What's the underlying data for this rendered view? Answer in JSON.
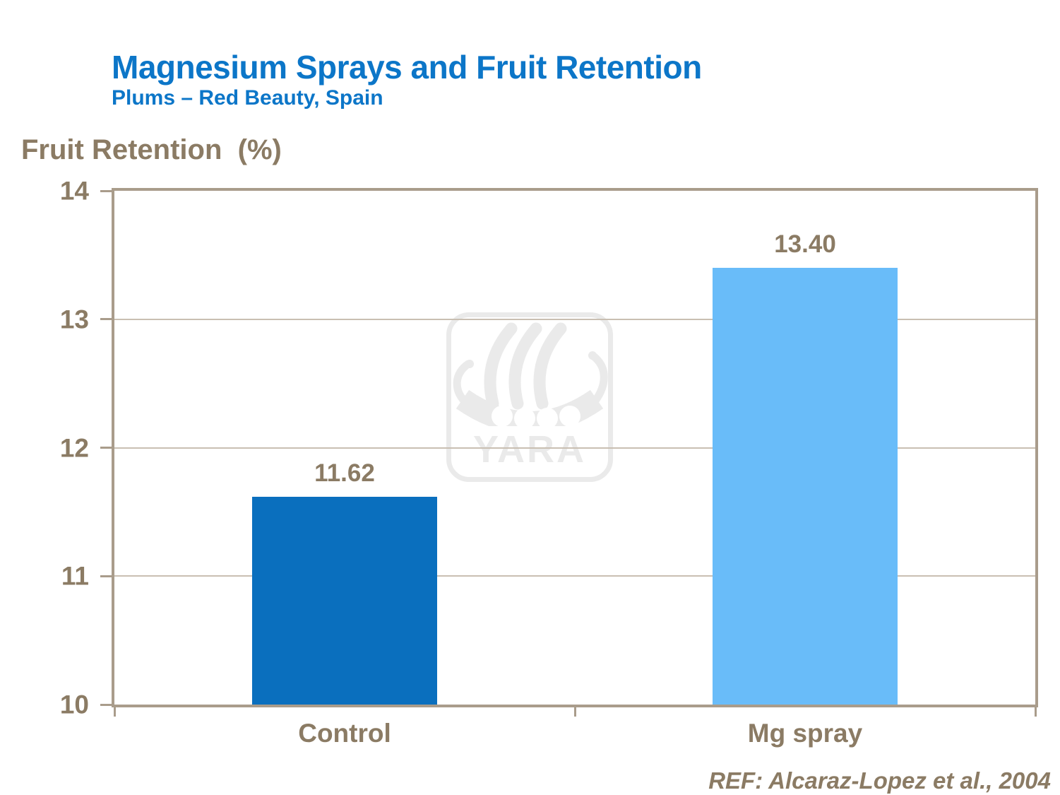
{
  "slide": {
    "watermark_label": "YARA",
    "colors": {
      "title_blue": "#0c76c8",
      "text_taupe": "#8b7b64",
      "frame_taupe": "#a99c8b",
      "grid_taupe": "#c9bfb2",
      "watermark_gray": "#eaeaea"
    }
  },
  "chart_data": {
    "type": "bar",
    "title": "Magnesium Sprays and Fruit Retention",
    "subtitle": "Plums – Red Beauty, Spain",
    "ylabel": "Fruit Retention  (%)",
    "categories": [
      "Control",
      "Mg spray"
    ],
    "values": [
      11.62,
      13.4
    ],
    "value_labels": [
      "11.62",
      "13.40"
    ],
    "ylim": [
      10,
      14
    ],
    "yticks": [
      14,
      13,
      12,
      11,
      10
    ],
    "grid": true,
    "legend": false,
    "bar_colors": [
      "#0a6fbe",
      "#69bcf9"
    ],
    "annotation": "REF: Alcaraz-Lopez et al., 2004"
  }
}
